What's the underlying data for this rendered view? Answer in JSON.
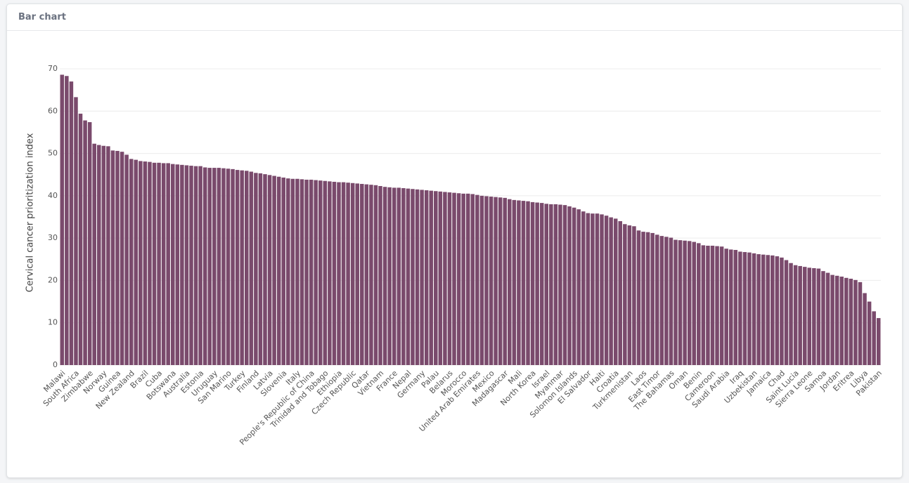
{
  "header": {
    "title": "Bar chart"
  },
  "chart_data": {
    "type": "bar",
    "y_label": "Cervical cancer prioritization index",
    "color": "#7a4a6c",
    "grid": true,
    "ylim": [
      0,
      70
    ],
    "yticks": [
      0,
      10,
      20,
      30,
      40,
      50,
      60,
      70
    ],
    "categories": [
      "Malawi",
      null,
      null,
      "South Africa",
      null,
      null,
      "Zimbabwe",
      null,
      null,
      "Norway",
      null,
      null,
      "Guinea",
      null,
      null,
      "New Zealand",
      null,
      null,
      "Brazil",
      null,
      null,
      "Cuba",
      null,
      null,
      "Botswana",
      null,
      null,
      "Australia",
      null,
      null,
      "Estonia",
      null,
      null,
      "Uruguay",
      null,
      null,
      "San Marino",
      null,
      null,
      "Turkey",
      null,
      null,
      "Finland",
      null,
      null,
      "Latvia",
      null,
      null,
      "Slovenia",
      null,
      null,
      "Italy",
      null,
      null,
      "People's Republic of China",
      null,
      null,
      "Trinidad and Tobago",
      null,
      null,
      "Ethiopia",
      null,
      null,
      "Czech Republic",
      null,
      null,
      "Qatar",
      null,
      null,
      "Vietnam",
      null,
      null,
      "France",
      null,
      null,
      "Nepal",
      null,
      null,
      "Germany",
      null,
      null,
      "Palau",
      null,
      null,
      "Belarus",
      null,
      null,
      "Morocco",
      null,
      null,
      "United Arab Emirates",
      null,
      null,
      "Mexico",
      null,
      null,
      "Madagascar",
      null,
      null,
      "Mali",
      null,
      null,
      "North Korea",
      null,
      null,
      "Israel",
      null,
      null,
      "Myanmar",
      null,
      null,
      "Solomon Islands",
      null,
      null,
      "El Salvador",
      null,
      null,
      "Haiti",
      null,
      null,
      "Croatia",
      null,
      null,
      "Turkmenistan",
      null,
      null,
      "Laos",
      null,
      null,
      "East Timor",
      null,
      null,
      "The Bahamas",
      null,
      null,
      "Oman",
      null,
      null,
      "Benin",
      null,
      null,
      "Cameroon",
      null,
      null,
      "Saudi Arabia",
      null,
      null,
      "Iraq",
      null,
      null,
      "Uzbekistan",
      null,
      null,
      "Jamaica",
      null,
      null,
      "Chad",
      null,
      null,
      "Saint Lucia",
      null,
      null,
      "Sierra Leone",
      null,
      null,
      "Samoa",
      null,
      null,
      "Jordan",
      null,
      null,
      "Eritrea",
      null,
      null,
      "Libya",
      null,
      null,
      "Pakistan"
    ],
    "values": [
      68.6,
      68.3,
      67.0,
      63.3,
      59.4,
      57.8,
      57.4,
      52.3,
      52.0,
      51.8,
      51.7,
      50.7,
      50.6,
      50.4,
      49.7,
      48.7,
      48.5,
      48.2,
      48.1,
      48.0,
      47.8,
      47.8,
      47.7,
      47.7,
      47.5,
      47.4,
      47.3,
      47.2,
      47.1,
      47.0,
      47.0,
      46.7,
      46.6,
      46.6,
      46.6,
      46.5,
      46.4,
      46.3,
      46.1,
      46.0,
      45.9,
      45.7,
      45.4,
      45.3,
      45.1,
      44.9,
      44.7,
      44.5,
      44.3,
      44.1,
      44.0,
      44.0,
      43.9,
      43.8,
      43.8,
      43.7,
      43.6,
      43.5,
      43.4,
      43.3,
      43.2,
      43.2,
      43.1,
      43.0,
      42.9,
      42.8,
      42.7,
      42.6,
      42.5,
      42.3,
      42.1,
      42.0,
      41.9,
      41.9,
      41.8,
      41.7,
      41.6,
      41.5,
      41.4,
      41.3,
      41.2,
      41.1,
      41.0,
      40.9,
      40.8,
      40.7,
      40.6,
      40.5,
      40.5,
      40.4,
      40.2,
      40.0,
      39.9,
      39.8,
      39.7,
      39.6,
      39.5,
      39.2,
      39.0,
      38.9,
      38.8,
      38.7,
      38.5,
      38.4,
      38.3,
      38.1,
      38.0,
      38.0,
      37.9,
      37.8,
      37.5,
      37.2,
      36.8,
      36.3,
      35.9,
      35.8,
      35.8,
      35.6,
      35.3,
      34.9,
      34.6,
      34.0,
      33.3,
      33.0,
      32.8,
      31.8,
      31.5,
      31.4,
      31.2,
      30.8,
      30.5,
      30.3,
      30.1,
      29.6,
      29.5,
      29.4,
      29.3,
      29.1,
      28.8,
      28.3,
      28.2,
      28.2,
      28.1,
      28.0,
      27.5,
      27.3,
      27.2,
      26.8,
      26.7,
      26.6,
      26.4,
      26.2,
      26.1,
      26.0,
      25.9,
      25.7,
      25.4,
      24.8,
      24.1,
      23.6,
      23.4,
      23.2,
      23.0,
      22.9,
      22.8,
      22.2,
      21.8,
      21.3,
      21.1,
      20.9,
      20.6,
      20.4,
      20.1,
      19.6,
      17.0,
      15.0,
      12.7,
      11.1
    ]
  }
}
